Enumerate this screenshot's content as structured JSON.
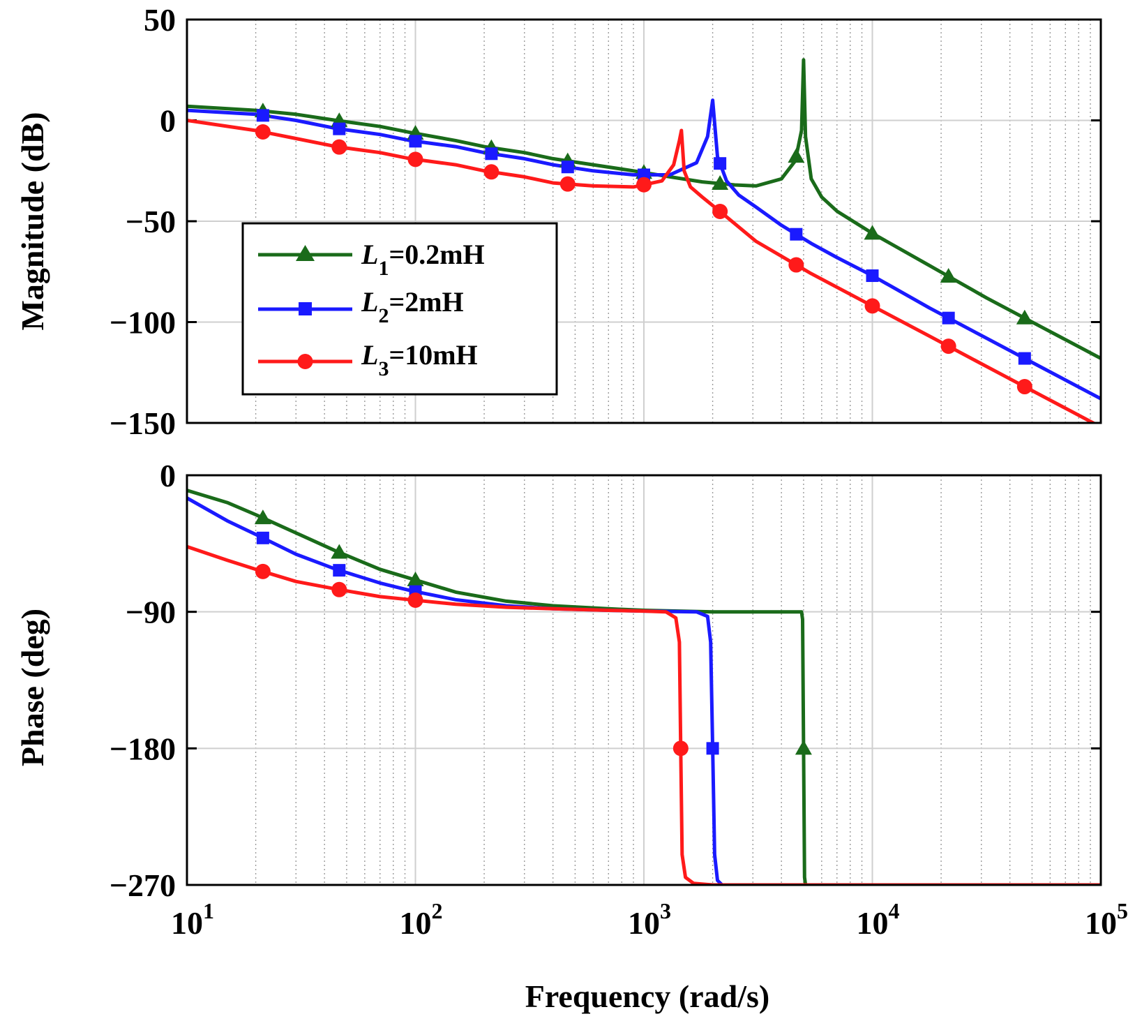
{
  "chart_data": [
    {
      "type": "line",
      "panel": "magnitude",
      "ylabel": "Magnitude (dB)",
      "xscale": "log",
      "xlim": [
        10,
        100000
      ],
      "ylim": [
        -150,
        50
      ],
      "yticks": [
        50,
        0,
        -50,
        -100,
        -150
      ],
      "ytick_labels": [
        "50",
        "0",
        "−50",
        "−100",
        "−150"
      ],
      "grid": true,
      "legend": {
        "placement": "left-middle",
        "entries": [
          {
            "var": "L",
            "sub": "1",
            "value": "=0.2mH"
          },
          {
            "var": "L",
            "sub": "2",
            "value": "=2mH"
          },
          {
            "var": "L",
            "sub": "3",
            "value": "=10mH"
          }
        ]
      },
      "series": [
        {
          "name": "L1=0.2mH",
          "color": "#1a6b1a",
          "marker": "triangle",
          "x": [
            10,
            20,
            30,
            45,
            70,
            95,
            150,
            200,
            300,
            400,
            600,
            900,
            1300,
            1800,
            2500,
            3100,
            4000,
            4600,
            4900,
            5000,
            5100,
            5400,
            6000,
            7000,
            8500,
            10000,
            17800,
            31600,
            56200,
            100000
          ],
          "y": [
            7,
            5,
            3,
            0,
            -3,
            -6,
            -10,
            -13,
            -16,
            -19,
            -22,
            -25,
            -28,
            -30.5,
            -32,
            -32.5,
            -29,
            -20,
            -5,
            30,
            -8,
            -29,
            -38,
            -45,
            -51,
            -56,
            -72,
            -88,
            -103,
            -118
          ]
        },
        {
          "name": "L2=2mH",
          "color": "#1a1aff",
          "marker": "square",
          "x": [
            10,
            20,
            30,
            45,
            70,
            95,
            150,
            200,
            300,
            400,
            600,
            900,
            1300,
            1700,
            1900,
            2000,
            2100,
            2300,
            2600,
            3100,
            4000,
            5400,
            7000,
            10000,
            17800,
            31600,
            56200,
            100000
          ],
          "y": [
            5,
            3,
            0,
            -4,
            -7,
            -10,
            -13,
            -16,
            -19,
            -22,
            -25,
            -27,
            -27,
            -21,
            -8,
            10,
            -18,
            -30,
            -37,
            -43,
            -52,
            -61,
            -68,
            -77,
            -93,
            -108,
            -123,
            -138
          ]
        },
        {
          "name": "L3=10mH",
          "color": "#ff1a1a",
          "marker": "circle",
          "x": [
            10,
            20,
            30,
            45,
            70,
            95,
            150,
            200,
            300,
            400,
            600,
            900,
            1200,
            1350,
            1430,
            1460,
            1500,
            1600,
            1800,
            2200,
            3100,
            5400,
            10000,
            17800,
            31600,
            56200,
            100000
          ],
          "y": [
            0,
            -5,
            -9,
            -13,
            -16,
            -19,
            -22,
            -25,
            -28,
            -31,
            -32.5,
            -33,
            -30,
            -22,
            -10,
            -5,
            -25,
            -33,
            -38,
            -46,
            -60,
            -76,
            -92,
            -107,
            -122,
            -137,
            -152
          ]
        }
      ]
    },
    {
      "type": "line",
      "panel": "phase",
      "xlabel": "Frequency (rad/s)",
      "ylabel": "Phase (deg)",
      "xscale": "log",
      "xlim": [
        10,
        100000
      ],
      "ylim": [
        -270,
        0
      ],
      "yticks": [
        0,
        -90,
        -180,
        -270
      ],
      "ytick_labels": [
        "0",
        "−90",
        "−180",
        "−270"
      ],
      "xtick_labels": [
        {
          "base": "10",
          "exp": "1"
        },
        {
          "base": "10",
          "exp": "2"
        },
        {
          "base": "10",
          "exp": "3"
        },
        {
          "base": "10",
          "exp": "4"
        },
        {
          "base": "10",
          "exp": "5"
        }
      ],
      "grid": true,
      "series": [
        {
          "name": "L1=0.2mH",
          "color": "#1a6b1a",
          "marker": "triangle",
          "x": [
            10,
            15,
            20,
            30,
            45,
            70,
            95,
            150,
            250,
            400,
            700,
            1000,
            2000,
            4900,
            4950,
            5000,
            5050,
            5100,
            100000
          ],
          "y": [
            -10,
            -18,
            -26,
            -38,
            -50,
            -62,
            -68,
            -77,
            -83,
            -86,
            -88,
            -89,
            -90,
            -90,
            -95,
            -180,
            -265,
            -270,
            -270
          ]
        },
        {
          "name": "L2=2mH",
          "color": "#1a1aff",
          "marker": "square",
          "x": [
            10,
            15,
            20,
            30,
            45,
            70,
            95,
            150,
            250,
            400,
            700,
            1000,
            1700,
            1900,
            1960,
            2000,
            2040,
            2100,
            2200,
            100000
          ],
          "y": [
            -15,
            -30,
            -39,
            -52,
            -62,
            -71,
            -76,
            -82,
            -86,
            -88,
            -89,
            -89.5,
            -90,
            -93,
            -110,
            -180,
            -250,
            -267,
            -270,
            -270
          ]
        },
        {
          "name": "L3=10mH",
          "color": "#ff1a1a",
          "marker": "circle",
          "x": [
            10,
            15,
            20,
            30,
            45,
            70,
            95,
            150,
            250,
            400,
            700,
            1000,
            1250,
            1380,
            1430,
            1450,
            1470,
            1520,
            1650,
            2000,
            100000
          ],
          "y": [
            -47,
            -56,
            -62,
            -70,
            -75,
            -80,
            -82,
            -85,
            -87,
            -88,
            -89,
            -89.5,
            -90,
            -94,
            -110,
            -180,
            -250,
            -265,
            -269,
            -270,
            -270
          ]
        }
      ]
    }
  ]
}
